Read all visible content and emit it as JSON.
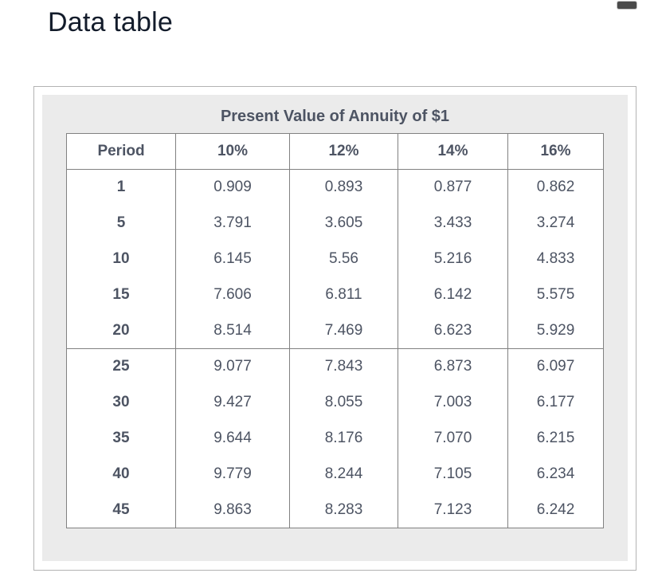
{
  "page": {
    "heading": "Data table"
  },
  "window": {
    "top_right_icon": "minimize-dash"
  },
  "table": {
    "title": "Present Value of Annuity of $1",
    "columns": [
      "Period",
      "10%",
      "12%",
      "14%",
      "16%"
    ],
    "groups": [
      {
        "rows": [
          {
            "period": "1",
            "values": [
              "0.909",
              "0.893",
              "0.877",
              "0.862"
            ]
          },
          {
            "period": "5",
            "values": [
              "3.791",
              "3.605",
              "3.433",
              "3.274"
            ]
          },
          {
            "period": "10",
            "values": [
              "6.145",
              "5.56",
              "5.216",
              "4.833"
            ]
          },
          {
            "period": "15",
            "values": [
              "7.606",
              "6.811",
              "6.142",
              "5.575"
            ]
          },
          {
            "period": "20",
            "values": [
              "8.514",
              "7.469",
              "6.623",
              "5.929"
            ]
          }
        ]
      },
      {
        "rows": [
          {
            "period": "25",
            "values": [
              "9.077",
              "7.843",
              "6.873",
              "6.097"
            ]
          },
          {
            "period": "30",
            "values": [
              "9.427",
              "8.055",
              "7.003",
              "6.177"
            ]
          },
          {
            "period": "35",
            "values": [
              "9.644",
              "8.176",
              "7.070",
              "6.215"
            ]
          },
          {
            "period": "40",
            "values": [
              "9.779",
              "8.244",
              "7.105",
              "6.234"
            ]
          },
          {
            "period": "45",
            "values": [
              "9.863",
              "8.283",
              "7.123",
              "6.242"
            ]
          }
        ]
      }
    ]
  },
  "colors": {
    "heading_text": "#131c2b",
    "table_text": "#4d5463",
    "table_border": "#818181",
    "card_border": "#b3b3b3",
    "panel_background": "#ebebeb",
    "dash_icon": "#4a4a4a"
  },
  "chart_data": {
    "type": "table",
    "title": "Present Value of Annuity of $1",
    "columns": [
      "Period",
      "10%",
      "12%",
      "14%",
      "16%"
    ],
    "rows": [
      [
        1,
        0.909,
        0.893,
        0.877,
        0.862
      ],
      [
        5,
        3.791,
        3.605,
        3.433,
        3.274
      ],
      [
        10,
        6.145,
        5.56,
        5.216,
        4.833
      ],
      [
        15,
        7.606,
        6.811,
        6.142,
        5.575
      ],
      [
        20,
        8.514,
        7.469,
        6.623,
        5.929
      ],
      [
        25,
        9.077,
        7.843,
        6.873,
        6.097
      ],
      [
        30,
        9.427,
        8.055,
        7.003,
        6.177
      ],
      [
        35,
        9.644,
        8.176,
        7.07,
        6.215
      ],
      [
        40,
        9.779,
        8.244,
        7.105,
        6.234
      ],
      [
        45,
        9.863,
        8.283,
        7.123,
        6.242
      ]
    ]
  }
}
